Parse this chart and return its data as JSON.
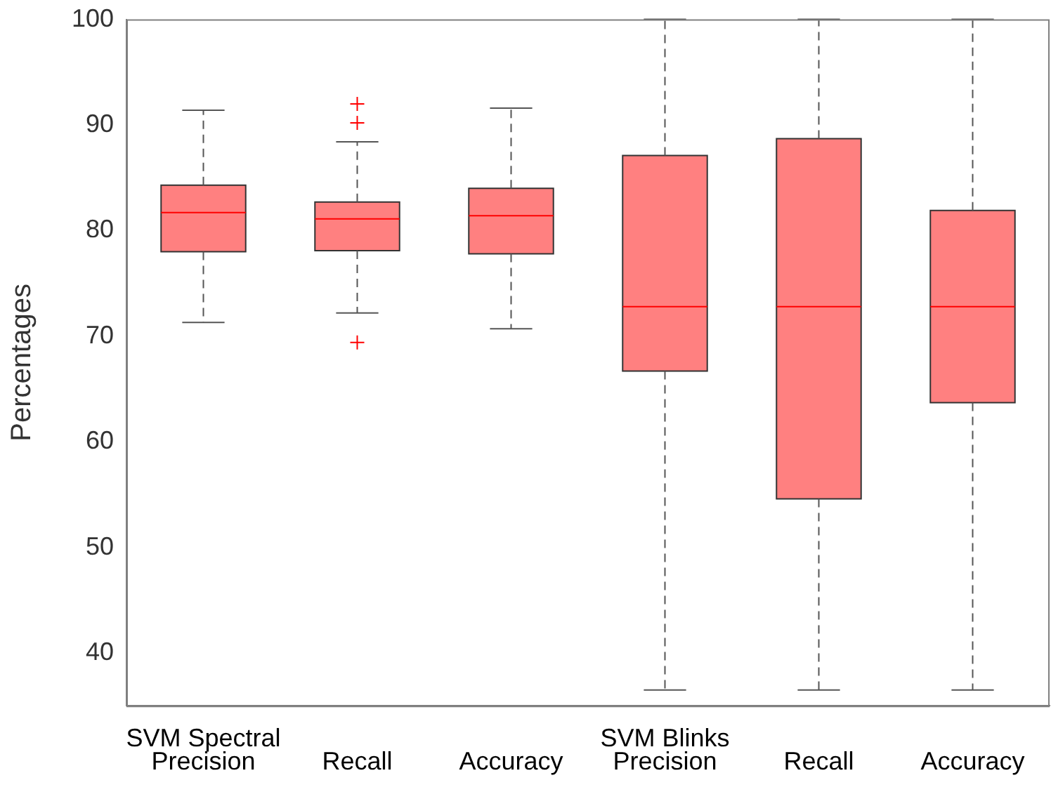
{
  "chart_data": {
    "type": "box",
    "ylabel": "Percentages",
    "categories": [
      "SVM Spectral\nPrecision",
      "Recall",
      "Accuracy",
      "SVM Blinks\nPrecision",
      "Recall",
      "Accuracy"
    ],
    "color": "#ff8080",
    "boxes": [
      {
        "low": 71.3,
        "q1": 78.0,
        "median": 81.7,
        "q3": 84.3,
        "high": 91.4
      },
      {
        "low": 72.2,
        "q1": 78.1,
        "median": 81.1,
        "q3": 82.7,
        "high": 88.4,
        "outliers": [
          92.0,
          90.2,
          69.4
        ]
      },
      {
        "low": 70.7,
        "q1": 77.8,
        "median": 81.4,
        "q3": 84.0,
        "high": 91.6
      },
      {
        "low": 36.5,
        "q1": 66.7,
        "median": 72.8,
        "q3": 87.1,
        "high": 100
      },
      {
        "low": 36.5,
        "q1": 54.6,
        "median": 72.8,
        "q3": 88.7,
        "high": 100
      },
      {
        "low": 36.5,
        "q1": 63.7,
        "median": 72.8,
        "q3": 81.9,
        "high": 100
      }
    ],
    "ylim": [
      35,
      100
    ],
    "yticks": [
      40,
      50,
      60,
      70,
      80,
      90,
      100
    ],
    "grid": false,
    "legend": false
  }
}
